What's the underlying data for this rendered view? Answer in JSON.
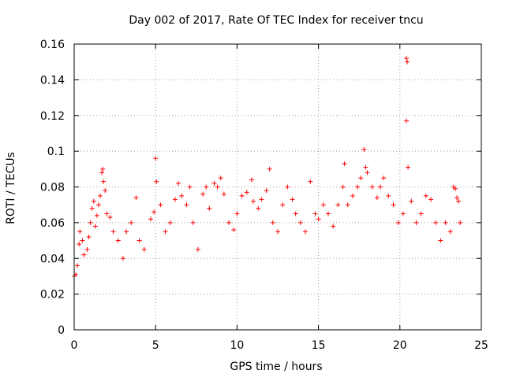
{
  "chart_data": {
    "type": "scatter",
    "title": "Day 002 of 2017, Rate Of TEC Index for receiver tncu",
    "xlabel": "GPS time / hours",
    "ylabel": "ROTI / TECUs",
    "xlim": [
      0,
      25
    ],
    "ylim": [
      0,
      0.16
    ],
    "xticks": [
      0,
      5,
      10,
      15,
      20,
      25
    ],
    "xtick_labels": [
      "0",
      "5",
      "10",
      "15",
      "20",
      "25"
    ],
    "yticks": [
      0,
      0.02,
      0.04,
      0.06,
      0.08,
      0.1,
      0.12,
      0.14,
      0.16
    ],
    "ytick_labels": [
      "0",
      "0.02",
      "0.04",
      "0.06",
      "0.08",
      "0.1",
      "0.12",
      "0.14",
      "0.16"
    ],
    "grid": true,
    "marker": "+",
    "color": "#ff0000",
    "series": [
      {
        "points": [
          [
            0.0,
            0.03
          ],
          [
            0.1,
            0.031
          ],
          [
            0.2,
            0.036
          ],
          [
            0.3,
            0.048
          ],
          [
            0.35,
            0.055
          ],
          [
            0.5,
            0.05
          ],
          [
            0.6,
            0.042
          ],
          [
            0.8,
            0.045
          ],
          [
            0.9,
            0.052
          ],
          [
            1.0,
            0.06
          ],
          [
            1.1,
            0.068
          ],
          [
            1.2,
            0.072
          ],
          [
            1.3,
            0.058
          ],
          [
            1.4,
            0.064
          ],
          [
            1.5,
            0.07
          ],
          [
            1.6,
            0.075
          ],
          [
            1.7,
            0.088
          ],
          [
            1.75,
            0.09
          ],
          [
            1.8,
            0.083
          ],
          [
            1.9,
            0.078
          ],
          [
            2.0,
            0.065
          ],
          [
            2.2,
            0.063
          ],
          [
            2.4,
            0.055
          ],
          [
            2.7,
            0.05
          ],
          [
            3.0,
            0.04
          ],
          [
            3.2,
            0.055
          ],
          [
            3.5,
            0.06
          ],
          [
            3.8,
            0.074
          ],
          [
            4.0,
            0.05
          ],
          [
            4.3,
            0.045
          ],
          [
            4.7,
            0.062
          ],
          [
            4.9,
            0.066
          ],
          [
            5.0,
            0.096
          ],
          [
            5.05,
            0.083
          ],
          [
            5.3,
            0.07
          ],
          [
            5.6,
            0.055
          ],
          [
            5.9,
            0.06
          ],
          [
            6.2,
            0.073
          ],
          [
            6.4,
            0.082
          ],
          [
            6.6,
            0.075
          ],
          [
            6.9,
            0.07
          ],
          [
            7.1,
            0.08
          ],
          [
            7.3,
            0.06
          ],
          [
            7.6,
            0.045
          ],
          [
            7.9,
            0.076
          ],
          [
            8.1,
            0.08
          ],
          [
            8.3,
            0.068
          ],
          [
            8.6,
            0.082
          ],
          [
            8.8,
            0.08
          ],
          [
            9.0,
            0.085
          ],
          [
            9.2,
            0.076
          ],
          [
            9.5,
            0.06
          ],
          [
            9.8,
            0.056
          ],
          [
            10.0,
            0.065
          ],
          [
            10.3,
            0.075
          ],
          [
            10.6,
            0.077
          ],
          [
            10.9,
            0.084
          ],
          [
            11.0,
            0.072
          ],
          [
            11.3,
            0.068
          ],
          [
            11.5,
            0.073
          ],
          [
            11.8,
            0.078
          ],
          [
            12.0,
            0.09
          ],
          [
            12.2,
            0.06
          ],
          [
            12.5,
            0.055
          ],
          [
            12.8,
            0.07
          ],
          [
            13.1,
            0.08
          ],
          [
            13.4,
            0.073
          ],
          [
            13.6,
            0.065
          ],
          [
            13.9,
            0.06
          ],
          [
            14.2,
            0.055
          ],
          [
            14.5,
            0.083
          ],
          [
            14.8,
            0.065
          ],
          [
            15.0,
            0.062
          ],
          [
            15.3,
            0.07
          ],
          [
            15.6,
            0.065
          ],
          [
            15.9,
            0.058
          ],
          [
            16.2,
            0.07
          ],
          [
            16.5,
            0.08
          ],
          [
            16.6,
            0.093
          ],
          [
            16.8,
            0.07
          ],
          [
            17.1,
            0.075
          ],
          [
            17.4,
            0.08
          ],
          [
            17.6,
            0.085
          ],
          [
            17.8,
            0.101
          ],
          [
            17.9,
            0.091
          ],
          [
            18.0,
            0.088
          ],
          [
            18.3,
            0.08
          ],
          [
            18.6,
            0.074
          ],
          [
            18.8,
            0.08
          ],
          [
            19.0,
            0.085
          ],
          [
            19.3,
            0.075
          ],
          [
            19.6,
            0.07
          ],
          [
            19.9,
            0.06
          ],
          [
            20.2,
            0.065
          ],
          [
            20.4,
            0.152
          ],
          [
            20.45,
            0.15
          ],
          [
            20.4,
            0.117
          ],
          [
            20.5,
            0.091
          ],
          [
            20.7,
            0.072
          ],
          [
            21.0,
            0.06
          ],
          [
            21.3,
            0.065
          ],
          [
            21.6,
            0.075
          ],
          [
            21.9,
            0.073
          ],
          [
            22.2,
            0.06
          ],
          [
            22.5,
            0.05
          ],
          [
            22.8,
            0.06
          ],
          [
            23.1,
            0.055
          ],
          [
            23.3,
            0.08
          ],
          [
            23.4,
            0.079
          ],
          [
            23.5,
            0.074
          ],
          [
            23.6,
            0.072
          ],
          [
            23.7,
            0.06
          ]
        ]
      }
    ]
  }
}
